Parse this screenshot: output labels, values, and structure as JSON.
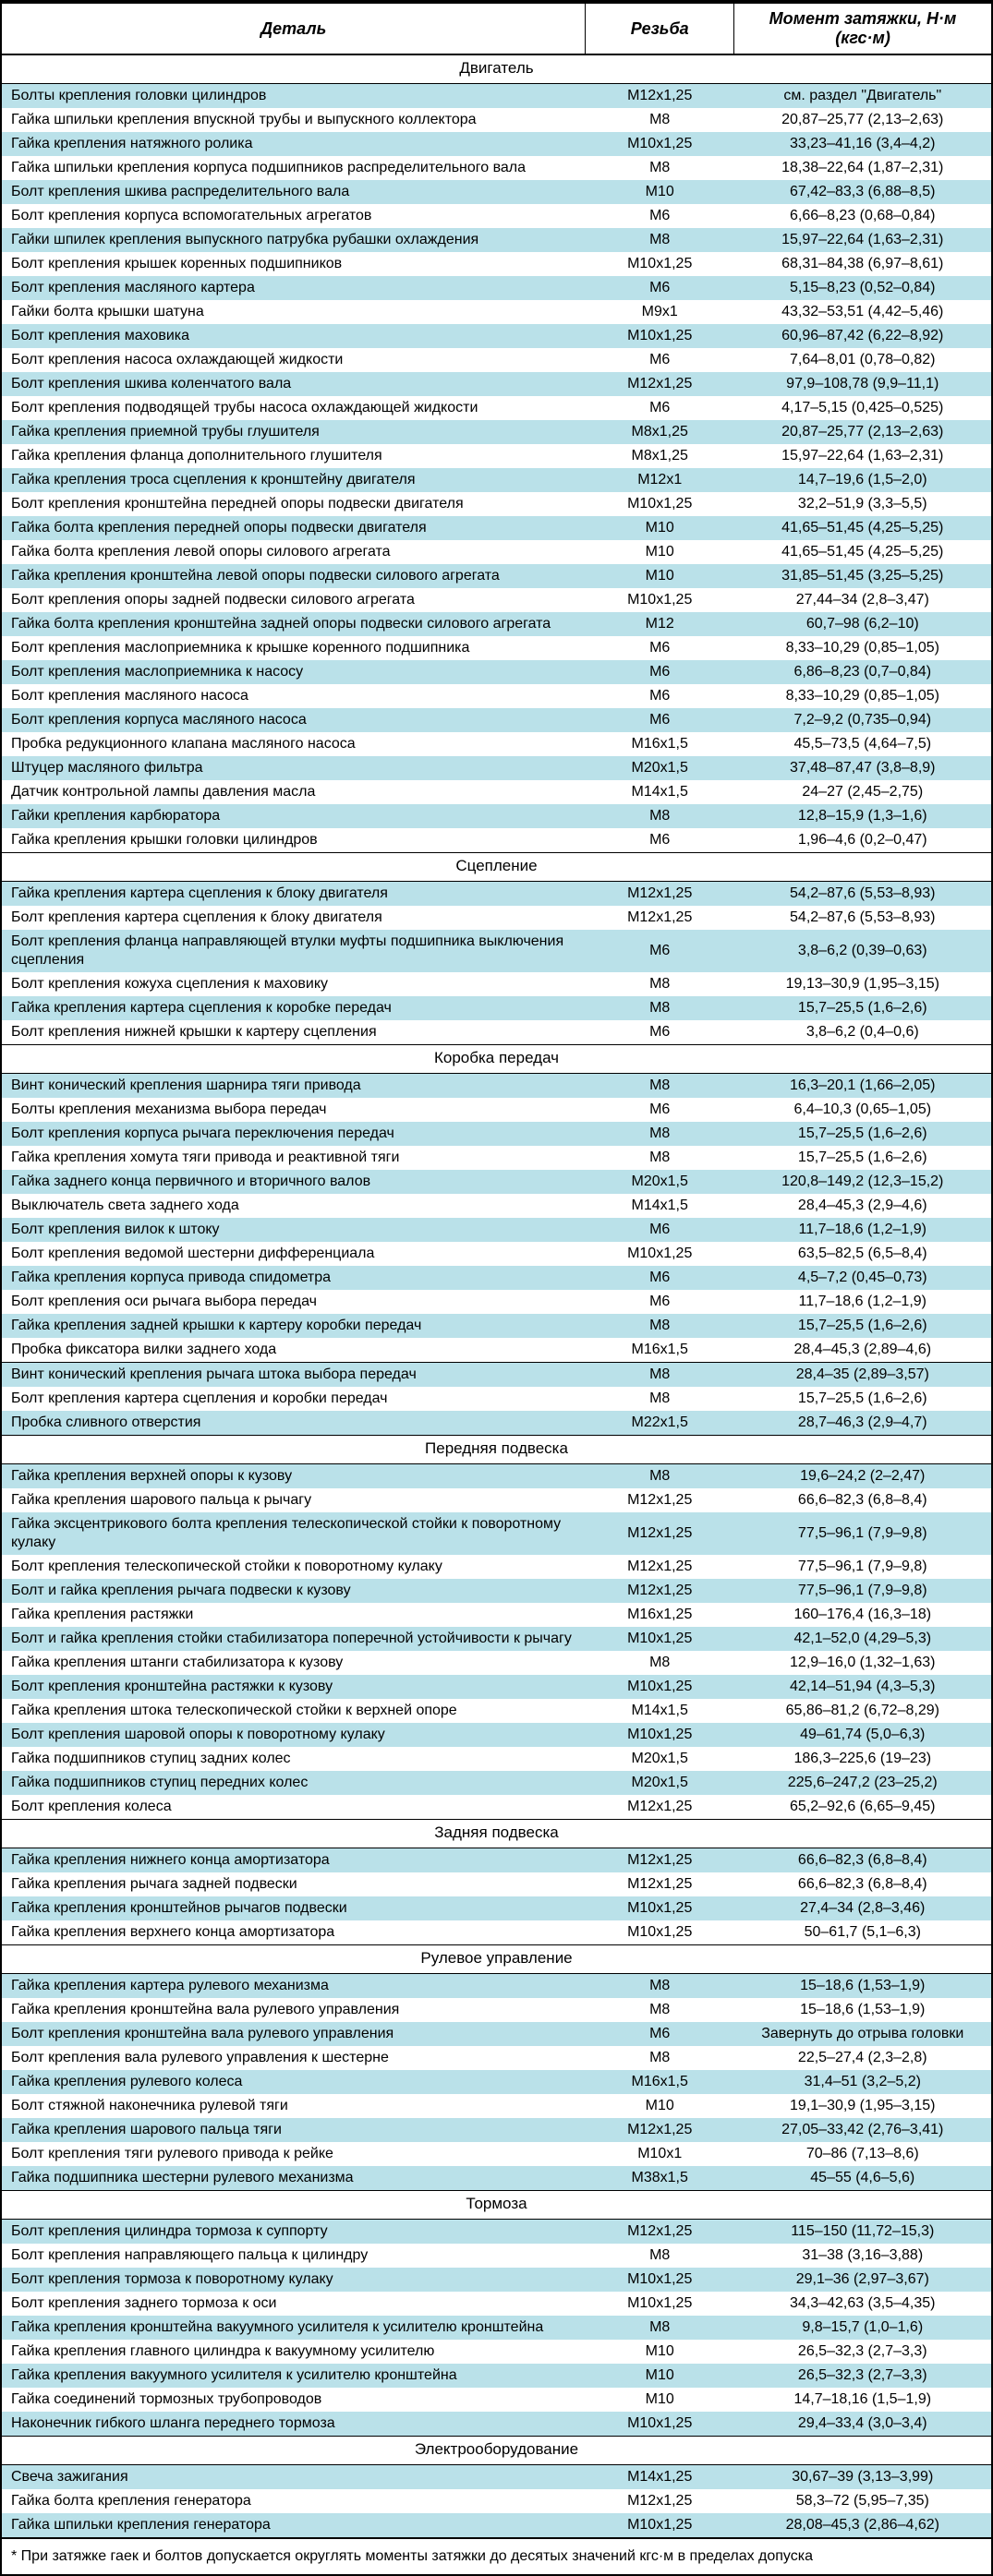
{
  "colors": {
    "stripe": "#bae1e9",
    "border": "#000000",
    "background": "#ffffff",
    "text": "#000000"
  },
  "font": {
    "family": "Arial",
    "header_size": 18,
    "section_size": 17,
    "row_size": 16
  },
  "headers": [
    "Деталь",
    "Резьба",
    "Момент затяжки, Н·м (кгс·м)"
  ],
  "footnote": "* При затяжке гаек и болтов допускается округлять моменты затяжки до десятых значений кгс·м в пределах допуска",
  "sections": [
    {
      "title": "Двигатель",
      "rows": [
        [
          "Болты крепления головки цилиндров",
          "М12x1,25",
          "см. раздел \"Двигатель\""
        ],
        [
          "Гайка шпильки крепления впускной трубы и выпускного коллектора",
          "М8",
          "20,87–25,77 (2,13–2,63)"
        ],
        [
          "Гайка крепления натяжного ролика",
          "М10x1,25",
          "33,23–41,16 (3,4–4,2)"
        ],
        [
          "Гайка шпильки крепления корпуса подшипников распределительного вала",
          "М8",
          "18,38–22,64 (1,87–2,31)"
        ],
        [
          "Болт крепления шкива распределительного вала",
          "М10",
          "67,42–83,3 (6,88–8,5)"
        ],
        [
          "Болт крепления корпуса вспомогательных агрегатов",
          "М6",
          "6,66–8,23 (0,68–0,84)"
        ],
        [
          "Гайки шпилек крепления выпускного патрубка рубашки охлаждения",
          "М8",
          "15,97–22,64 (1,63–2,31)"
        ],
        [
          "Болт крепления крышек коренных подшипников",
          "М10x1,25",
          "68,31–84,38 (6,97–8,61)"
        ],
        [
          "Болт крепления масляного картера",
          "М6",
          "5,15–8,23 (0,52–0,84)"
        ],
        [
          "Гайки болта крышки шатуна",
          "М9x1",
          "43,32–53,51 (4,42–5,46)"
        ],
        [
          "Болт крепления маховика",
          "М10x1,25",
          "60,96–87,42 (6,22–8,92)"
        ],
        [
          "Болт крепления насоса охлаждающей жидкости",
          "М6",
          "7,64–8,01 (0,78–0,82)"
        ],
        [
          "Болт крепления шкива коленчатого вала",
          "М12x1,25",
          "97,9–108,78 (9,9–11,1)"
        ],
        [
          "Болт крепления подводящей трубы насоса охлаждающей жидкости",
          "М6",
          "4,17–5,15 (0,425–0,525)"
        ],
        [
          "Гайка крепления приемной трубы глушителя",
          "М8x1,25",
          "20,87–25,77 (2,13–2,63)"
        ],
        [
          "Гайка крепления фланца дополнительного глушителя",
          "М8x1,25",
          "15,97–22,64 (1,63–2,31)"
        ],
        [
          "Гайка крепления троса сцепления к кронштейну двигателя",
          "М12x1",
          "14,7–19,6 (1,5–2,0)"
        ],
        [
          "Болт крепления кронштейна передней опоры подвески двигателя",
          "М10x1,25",
          "32,2–51,9 (3,3–5,5)"
        ],
        [
          "Гайка болта крепления передней опоры подвески двигателя",
          "М10",
          "41,65–51,45 (4,25–5,25)"
        ],
        [
          "Гайка болта крепления левой опоры силового агрегата",
          "М10",
          "41,65–51,45 (4,25–5,25)"
        ],
        [
          "Гайка крепления кронштейна левой опоры подвески силового агрегата",
          "М10",
          "31,85–51,45 (3,25–5,25)"
        ],
        [
          "Болт крепления опоры задней подвески силового агрегата",
          "М10x1,25",
          "27,44–34 (2,8–3,47)"
        ],
        [
          "Гайка болта крепления кронштейна задней опоры подвески силового агрегата",
          "М12",
          "60,7–98 (6,2–10)"
        ],
        [
          "Болт крепления маслоприемника к крышке коренного подшипника",
          "М6",
          "8,33–10,29 (0,85–1,05)"
        ],
        [
          "Болт крепления маслоприемника к насосу",
          "М6",
          "6,86–8,23 (0,7–0,84)"
        ],
        [
          "Болт крепления масляного насоса",
          "М6",
          "8,33–10,29 (0,85–1,05)"
        ],
        [
          "Болт крепления корпуса масляного насоса",
          "М6",
          "7,2–9,2 (0,735–0,94)"
        ],
        [
          "Пробка редукционного клапана масляного насоса",
          "М16x1,5",
          "45,5–73,5 (4,64–7,5)"
        ],
        [
          "Штуцер масляного фильтра",
          "М20x1,5",
          "37,48–87,47 (3,8–8,9)"
        ],
        [
          "Датчик контрольной лампы давления масла",
          "М14x1,5",
          "24–27 (2,45–2,75)"
        ],
        [
          "Гайки крепления карбюратора",
          "М8",
          "12,8–15,9 (1,3–1,6)"
        ],
        [
          "Гайка крепления крышки головки цилиндров",
          "М6",
          "1,96–4,6 (0,2–0,47)"
        ]
      ]
    },
    {
      "title": "Сцепление",
      "rows": [
        [
          "Гайка крепления картера сцепления к блоку двигателя",
          "М12x1,25",
          "54,2–87,6 (5,53–8,93)"
        ],
        [
          "Болт крепления картера сцепления к блоку двигателя",
          "М12x1,25",
          "54,2–87,6 (5,53–8,93)"
        ],
        [
          "Болт крепления фланца направляющей втулки муфты подшипника выключения сцепления",
          "М6",
          "3,8–6,2 (0,39–0,63)"
        ],
        [
          "Болт крепления кожуха сцепления к маховику",
          "М8",
          "19,13–30,9 (1,95–3,15)"
        ],
        [
          "Гайка крепления картера сцепления к коробке передач",
          "М8",
          "15,7–25,5 (1,6–2,6)"
        ],
        [
          "Болт крепления нижней крышки к картеру сцепления",
          "М6",
          "3,8–6,2 (0,4–0,6)"
        ]
      ]
    },
    {
      "title": "Коробка передач",
      "subgroups": [
        {
          "rows": [
            [
              "Винт конический крепления шарнира тяги привода",
              "М8",
              "16,3–20,1 (1,66–2,05)"
            ],
            [
              "Болты крепления механизма выбора передач",
              "М6",
              "6,4–10,3 (0,65–1,05)"
            ],
            [
              "Болт крепления корпуса рычага переключения передач",
              "М8",
              "15,7–25,5 (1,6–2,6)"
            ],
            [
              "Гайка крепления хомута тяги привода и реактивной тяги",
              "М8",
              "15,7–25,5 (1,6–2,6)"
            ],
            [
              "Гайка заднего конца первичного и вторичного валов",
              "М20x1,5",
              "120,8–149,2 (12,3–15,2)"
            ],
            [
              "Выключатель света заднего хода",
              "М14x1,5",
              "28,4–45,3 (2,9–4,6)"
            ],
            [
              "Болт крепления вилок к штоку",
              "М6",
              "11,7–18,6 (1,2–1,9)"
            ],
            [
              "Болт крепления ведомой шестерни дифференциала",
              "М10x1,25",
              "63,5–82,5 (6,5–8,4)"
            ],
            [
              "Гайка крепления корпуса привода спидометра",
              "М6",
              "4,5–7,2 (0,45–0,73)"
            ],
            [
              "Болт крепления оси рычага выбора передач",
              "М6",
              "11,7–18,6 (1,2–1,9)"
            ],
            [
              "Гайка крепления задней крышки к картеру коробки передач",
              "М8",
              "15,7–25,5 (1,6–2,6)"
            ],
            [
              "Пробка фиксатора вилки заднего хода",
              "М16x1,5",
              "28,4–45,3 (2,89–4,6)"
            ]
          ]
        },
        {
          "rows": [
            [
              "Винт конический крепления рычага штока выбора передач",
              "М8",
              "28,4–35 (2,89–3,57)"
            ],
            [
              "Болт крепления картера сцепления и коробки передач",
              "М8",
              "15,7–25,5 (1,6–2,6)"
            ],
            [
              "Пробка сливного отверстия",
              "М22x1,5",
              "28,7–46,3 (2,9–4,7)"
            ]
          ]
        }
      ]
    },
    {
      "title": "Передняя подвеска",
      "rows": [
        [
          "Гайка крепления верхней опоры к кузову",
          "М8",
          "19,6–24,2 (2–2,47)"
        ],
        [
          "Гайка крепления шарового пальца к рычагу",
          "М12x1,25",
          "66,6–82,3 (6,8–8,4)"
        ],
        [
          "Гайка эксцентрикового болта крепления телескопической стойки к поворотному кулаку",
          "М12x1,25",
          "77,5–96,1 (7,9–9,8)"
        ],
        [
          "Болт крепления телескопической стойки к поворотному кулаку",
          "М12x1,25",
          "77,5–96,1 (7,9–9,8)"
        ],
        [
          "Болт и гайка крепления рычага подвески к кузову",
          "М12x1,25",
          "77,5–96,1 (7,9–9,8)"
        ],
        [
          "Гайка крепления растяжки",
          "М16x1,25",
          "160–176,4 (16,3–18)"
        ],
        [
          "Болт и гайка крепления стойки стабилизатора поперечной устойчивости к рычагу",
          "М10x1,25",
          "42,1–52,0 (4,29–5,3)"
        ],
        [
          "Гайка крепления штанги стабилизатора к кузову",
          "М8",
          "12,9–16,0 (1,32–1,63)"
        ],
        [
          "Болт крепления кронштейна растяжки к кузову",
          "М10x1,25",
          "42,14–51,94 (4,3–5,3)"
        ],
        [
          "Гайка крепления штока телескопической стойки к верхней опоре",
          "М14x1,5",
          "65,86–81,2 (6,72–8,29)"
        ],
        [
          "Болт крепления шаровой опоры к поворотному кулаку",
          "М10x1,25",
          "49–61,74 (5,0–6,3)"
        ],
        [
          "Гайка подшипников ступиц задних колес",
          "М20x1,5",
          "186,3–225,6 (19–23)"
        ],
        [
          "Гайка подшипников ступиц передних колес",
          "М20x1,5",
          "225,6–247,2 (23–25,2)"
        ],
        [
          "Болт крепления колеса",
          "М12x1,25",
          "65,2–92,6 (6,65–9,45)"
        ]
      ]
    },
    {
      "title": "Задняя подвеска",
      "rows": [
        [
          "Гайка крепления нижнего конца амортизатора",
          "М12x1,25",
          "66,6–82,3 (6,8–8,4)"
        ],
        [
          "Гайка крепления рычага задней подвески",
          "М12x1,25",
          "66,6–82,3 (6,8–8,4)"
        ],
        [
          "Гайка крепления кронштейнов рычагов подвески",
          "М10x1,25",
          "27,4–34 (2,8–3,46)"
        ],
        [
          "Гайка крепления верхнего конца амортизатора",
          "М10x1,25",
          "50–61,7 (5,1–6,3)"
        ]
      ]
    },
    {
      "title": "Рулевое управление",
      "rows": [
        [
          "Гайка крепления картера рулевого механизма",
          "М8",
          "15–18,6 (1,53–1,9)"
        ],
        [
          "Гайка крепления кронштейна вала рулевого управления",
          "М8",
          "15–18,6 (1,53–1,9)"
        ],
        [
          "Болт крепления кронштейна вала рулевого управления",
          "М6",
          "Завернуть до отрыва головки"
        ],
        [
          "Болт крепления вала рулевого управления к шестерне",
          "М8",
          "22,5–27,4 (2,3–2,8)"
        ],
        [
          "Гайка крепления рулевого колеса",
          "М16x1,5",
          "31,4–51 (3,2–5,2)"
        ],
        [
          "Болт стяжной наконечника рулевой тяги",
          "М10",
          "19,1–30,9 (1,95–3,15)"
        ],
        [
          "Гайка крепления шарового пальца тяги",
          "М12x1,25",
          "27,05–33,42 (2,76–3,41)"
        ],
        [
          "Болт крепления тяги рулевого привода к рейке",
          "М10x1",
          "70–86 (7,13–8,6)"
        ],
        [
          "Гайка подшипника шестерни рулевого механизма",
          "М38x1,5",
          "45–55 (4,6–5,6)"
        ]
      ]
    },
    {
      "title": "Тормоза",
      "rows": [
        [
          "Болт крепления цилиндра тормоза к суппорту",
          "М12x1,25",
          "115–150 (11,72–15,3)"
        ],
        [
          "Болт крепления направляющего пальца к цилиндру",
          "М8",
          "31–38 (3,16–3,88)"
        ],
        [
          "Болт крепления тормоза к поворотному кулаку",
          "М10x1,25",
          "29,1–36 (2,97–3,67)"
        ],
        [
          "Болт крепления заднего тормоза к оси",
          "М10x1,25",
          "34,3–42,63 (3,5–4,35)"
        ],
        [
          "Гайка крепления кронштейна вакуумного усилителя к усилителю кронштейна",
          "М8",
          "9,8–15,7 (1,0–1,6)"
        ],
        [
          "Гайка крепления главного цилиндра к вакуумному усилителю",
          "М10",
          "26,5–32,3 (2,7–3,3)"
        ],
        [
          "Гайка крепления вакуумного усилителя к усилителю кронштейна",
          "М10",
          "26,5–32,3 (2,7–3,3)"
        ],
        [
          "Гайка соединений тормозных трубопроводов",
          "М10",
          "14,7–18,16 (1,5–1,9)"
        ],
        [
          "Наконечник гибкого шланга переднего тормоза",
          "М10x1,25",
          "29,4–33,4 (3,0–3,4)"
        ]
      ]
    },
    {
      "title": "Электрооборудование",
      "rows": [
        [
          "Свеча зажигания",
          "М14x1,25",
          "30,67–39 (3,13–3,99)"
        ],
        [
          "Гайка болта крепления генератора",
          "М12x1,25",
          "58,3–72 (5,95–7,35)"
        ],
        [
          "Гайка шпильки крепления генератора",
          "М10x1,25",
          "28,08–45,3 (2,86–4,62)"
        ]
      ]
    }
  ]
}
